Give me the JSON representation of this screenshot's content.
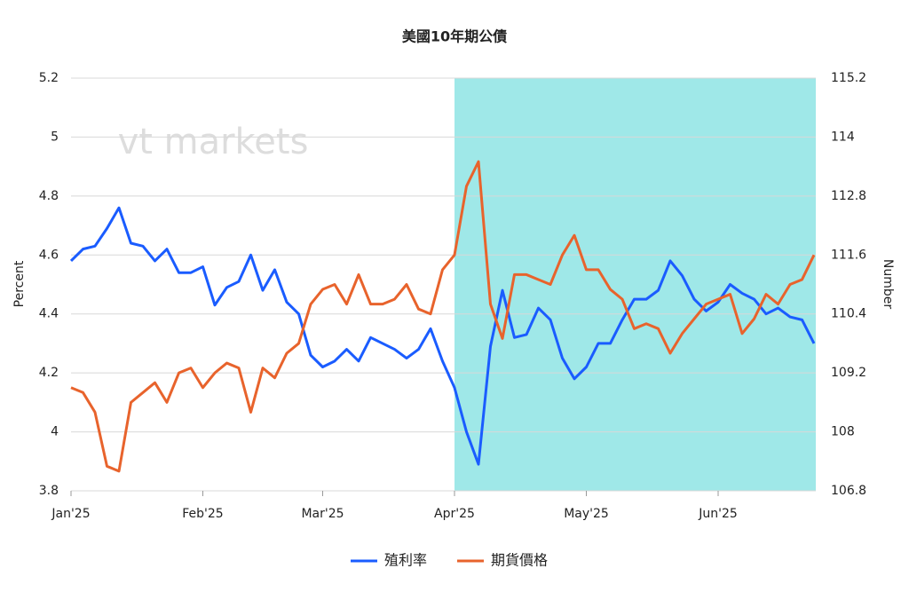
{
  "chart_data": {
    "type": "line",
    "title": "美國10年期公債",
    "watermark": "vt markets",
    "y_label": "Percent",
    "y2_label": "Number",
    "categories": [
      "Jan'25",
      null,
      null,
      null,
      null,
      null,
      null,
      null,
      null,
      null,
      null,
      "Feb'25",
      null,
      null,
      null,
      null,
      null,
      null,
      null,
      null,
      null,
      "Mar'25",
      null,
      null,
      null,
      null,
      null,
      null,
      null,
      null,
      null,
      null,
      "Apr'25",
      null,
      null,
      null,
      null,
      null,
      null,
      null,
      null,
      null,
      null,
      "May'25",
      null,
      null,
      null,
      null,
      null,
      null,
      null,
      null,
      null,
      null,
      "Jun'25",
      null,
      null,
      null,
      null,
      null,
      null,
      null,
      null
    ],
    "series": [
      {
        "name": "殖利率",
        "color": "#1a5cff",
        "values": [
          4.58,
          4.62,
          4.63,
          4.69,
          4.76,
          4.64,
          4.63,
          4.58,
          4.62,
          4.54,
          4.54,
          4.56,
          4.43,
          4.49,
          4.51,
          4.6,
          4.48,
          4.55,
          4.44,
          4.4,
          4.26,
          4.22,
          4.24,
          4.28,
          4.24,
          4.32,
          4.3,
          4.28,
          4.25,
          4.28,
          4.35,
          4.24,
          4.15,
          4.0,
          3.89,
          4.29,
          4.48,
          4.32,
          4.33,
          4.42,
          4.38,
          4.25,
          4.18,
          4.22,
          4.3,
          4.3,
          4.38,
          4.45,
          4.45,
          4.48,
          4.58,
          4.53,
          4.45,
          4.41,
          4.44,
          4.5,
          4.47,
          4.45,
          4.4,
          4.42,
          4.39,
          4.38,
          4.3
        ]
      },
      {
        "name": "期貨價格",
        "color": "#e8632c",
        "axis": "y2",
        "values": [
          108.9,
          108.8,
          108.4,
          107.3,
          107.2,
          108.6,
          108.8,
          109.0,
          108.6,
          109.2,
          109.3,
          108.9,
          109.2,
          109.4,
          109.3,
          108.4,
          109.3,
          109.1,
          109.6,
          109.8,
          110.6,
          110.9,
          111.0,
          110.6,
          111.2,
          110.6,
          110.6,
          110.7,
          111.0,
          110.5,
          110.4,
          111.3,
          111.6,
          113.0,
          113.5,
          110.6,
          109.9,
          111.2,
          111.2,
          111.1,
          111.0,
          111.6,
          112.0,
          111.3,
          111.3,
          110.9,
          110.7,
          110.1,
          110.2,
          110.1,
          109.6,
          110.0,
          110.3,
          110.6,
          110.7,
          110.8,
          110.0,
          110.3,
          110.8,
          110.6,
          111.0,
          111.1,
          111.6
        ]
      }
    ],
    "ylim": [
      3.8,
      5.2
    ],
    "yticks": [
      3.8,
      4,
      4.2,
      4.4,
      4.6,
      4.8,
      5,
      5.2
    ],
    "y2lim": [
      106.8,
      115.2
    ],
    "y2ticks": [
      106.8,
      108,
      109.2,
      110.4,
      111.6,
      112.8,
      114,
      115.2
    ],
    "grid": true,
    "legend": "bottom"
  }
}
